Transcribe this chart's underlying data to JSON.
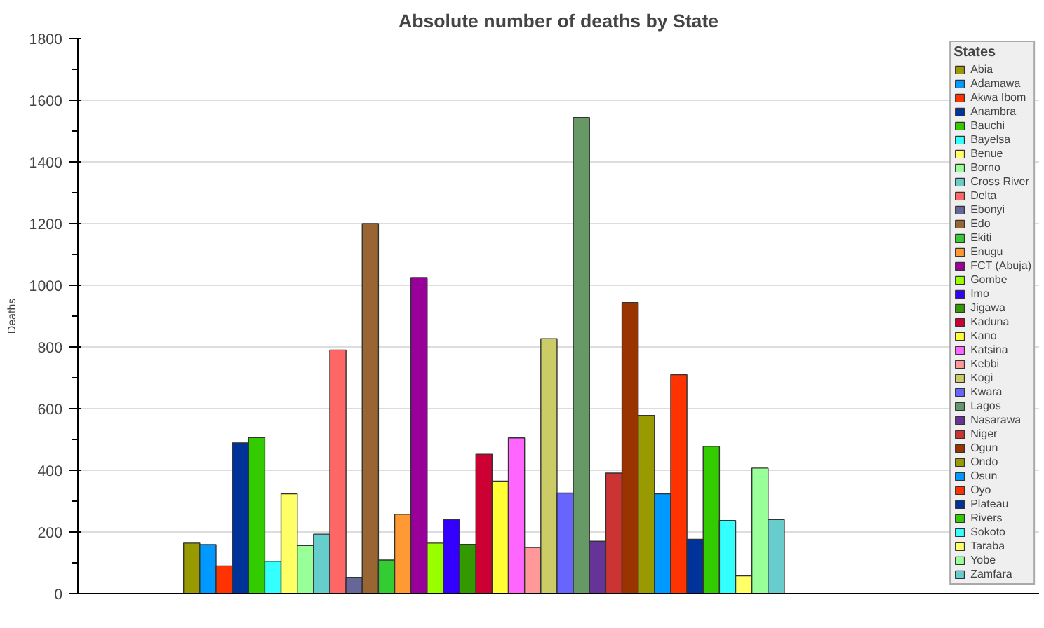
{
  "chart_data": {
    "type": "bar",
    "title": "Absolute number of deaths by State",
    "ylabel": "Deaths",
    "legend_title": "States",
    "categories": [
      null
    ],
    "ylim": [
      0,
      1800
    ],
    "yticks": [
      0,
      200,
      400,
      600,
      800,
      1000,
      1200,
      1400,
      1600,
      1800
    ],
    "grid": "y",
    "legend": "right",
    "tick_labels": "y",
    "series": [
      {
        "name": "Abia",
        "color": "#999900",
        "values": [
          164
        ]
      },
      {
        "name": "Adamawa",
        "color": "#0099ff",
        "values": [
          159
        ]
      },
      {
        "name": "Akwa Ibom",
        "color": "#ff3300",
        "values": [
          90
        ]
      },
      {
        "name": "Anambra",
        "color": "#003399",
        "values": [
          489
        ]
      },
      {
        "name": "Bauchi",
        "color": "#33cc00",
        "values": [
          506
        ]
      },
      {
        "name": "Bayelsa",
        "color": "#33ffff",
        "values": [
          105
        ]
      },
      {
        "name": "Benue",
        "color": "#ffff66",
        "values": [
          324
        ]
      },
      {
        "name": "Borno",
        "color": "#99ff99",
        "values": [
          156
        ]
      },
      {
        "name": "Cross River",
        "color": "#66cccc",
        "values": [
          193
        ]
      },
      {
        "name": "Delta",
        "color": "#ff6666",
        "values": [
          790
        ]
      },
      {
        "name": "Ebonyi",
        "color": "#666699",
        "values": [
          53
        ]
      },
      {
        "name": "Edo",
        "color": "#996633",
        "values": [
          1200
        ]
      },
      {
        "name": "Ekiti",
        "color": "#33cc33",
        "values": [
          109
        ]
      },
      {
        "name": "Enugu",
        "color": "#ff9933",
        "values": [
          257
        ]
      },
      {
        "name": "FCT (Abuja)",
        "color": "#990099",
        "values": [
          1025
        ]
      },
      {
        "name": "Gombe",
        "color": "#99ff00",
        "values": [
          164
        ]
      },
      {
        "name": "Imo",
        "color": "#3300ff",
        "values": [
          240
        ]
      },
      {
        "name": "Jigawa",
        "color": "#339900",
        "values": [
          160
        ]
      },
      {
        "name": "Kaduna",
        "color": "#cc0033",
        "values": [
          452
        ]
      },
      {
        "name": "Kano",
        "color": "#ffff33",
        "values": [
          365
        ]
      },
      {
        "name": "Katsina",
        "color": "#ff66ff",
        "values": [
          505
        ]
      },
      {
        "name": "Kebbi",
        "color": "#ff9999",
        "values": [
          150
        ]
      },
      {
        "name": "Kogi",
        "color": "#cccc66",
        "values": [
          827
        ]
      },
      {
        "name": "Kwara",
        "color": "#6666ff",
        "values": [
          326
        ]
      },
      {
        "name": "Lagos",
        "color": "#669966",
        "values": [
          1544
        ]
      },
      {
        "name": "Nasarawa",
        "color": "#663399",
        "values": [
          170
        ]
      },
      {
        "name": "Niger",
        "color": "#cc3333",
        "values": [
          391
        ]
      },
      {
        "name": "Ogun",
        "color": "#993300",
        "values": [
          944
        ]
      },
      {
        "name": "Ondo",
        "color": "#999900",
        "values": [
          578
        ]
      },
      {
        "name": "Osun",
        "color": "#0099ff",
        "values": [
          324
        ]
      },
      {
        "name": "Oyo",
        "color": "#ff3300",
        "values": [
          710
        ]
      },
      {
        "name": "Plateau",
        "color": "#003399",
        "values": [
          176
        ]
      },
      {
        "name": "Rivers",
        "color": "#33cc00",
        "values": [
          478
        ]
      },
      {
        "name": "Sokoto",
        "color": "#33ffff",
        "values": [
          237
        ]
      },
      {
        "name": "Taraba",
        "color": "#ffff66",
        "values": [
          58
        ]
      },
      {
        "name": "Yobe",
        "color": "#99ff99",
        "values": [
          407
        ]
      },
      {
        "name": "Zamfara",
        "color": "#66cccc",
        "values": [
          240
        ]
      }
    ]
  }
}
